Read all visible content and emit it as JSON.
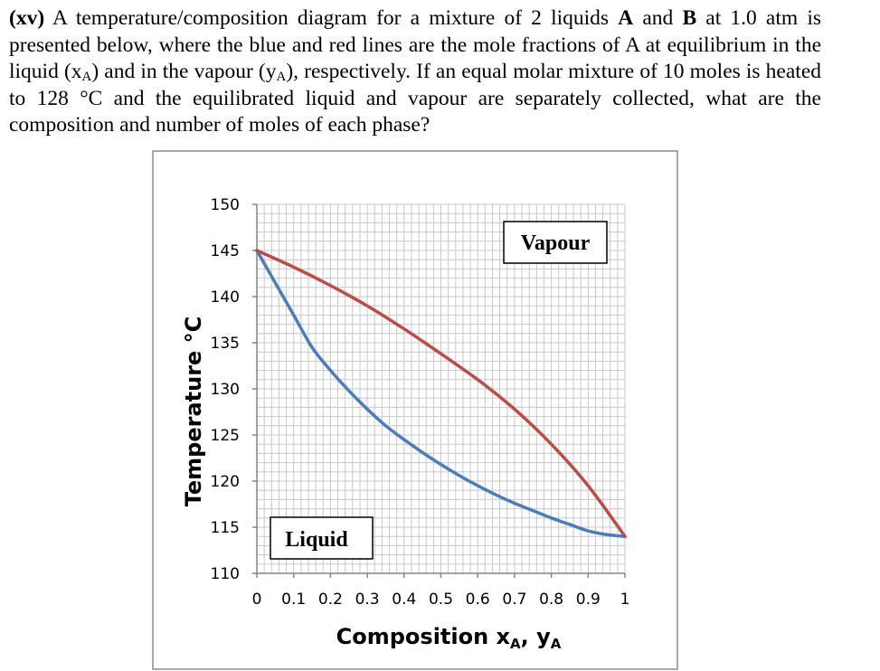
{
  "question": {
    "number": "(xv)",
    "t1": " A temperature/composition diagram for a mixture of 2 liquids ",
    "A": "A",
    "t2": " and ",
    "B": "B",
    "t3": " at 1.0 atm is presented below, where the blue and red lines are the mole fractions of A at equilibrium in the liquid (x",
    "sub1": "A",
    "t4": ") and in the vapour (y",
    "sub2": "A",
    "t5": "), respectively. If an equal molar mixture of 10 moles is heated to 128 °C and the equilibrated liquid and vapour are separately collected, what are the composition and number of moles of each phase?"
  },
  "chart_data": {
    "type": "line",
    "xlabel": "Composition x",
    "xlabel_sub": "A",
    "xlabel_mid": ", y",
    "xlabel_sub2": "A",
    "ylabel": "Temperature °C",
    "xlim": [
      0,
      1
    ],
    "ylim": [
      110,
      150
    ],
    "xticks": [
      "0",
      "0.1",
      "0.2",
      "0.3",
      "0.4",
      "0.5",
      "0.6",
      "0.7",
      "0.8",
      "0.9",
      "1"
    ],
    "yticks": [
      "150",
      "145",
      "140",
      "135",
      "130",
      "125",
      "120",
      "115",
      "110"
    ],
    "grid": true,
    "annotations": [
      "Vapour",
      "Liquid"
    ],
    "series": [
      {
        "color": "#4a7ebb",
        "points": [
          [
            0,
            145
          ],
          [
            0.05,
            141.5
          ],
          [
            0.1,
            138
          ],
          [
            0.15,
            134.5
          ],
          [
            0.2,
            132
          ],
          [
            0.25,
            129.8
          ],
          [
            0.3,
            127.8
          ],
          [
            0.35,
            126
          ],
          [
            0.4,
            124.5
          ],
          [
            0.45,
            123.1
          ],
          [
            0.5,
            121.8
          ],
          [
            0.55,
            120.6
          ],
          [
            0.6,
            119.5
          ],
          [
            0.65,
            118.5
          ],
          [
            0.7,
            117.6
          ],
          [
            0.75,
            116.8
          ],
          [
            0.8,
            116
          ],
          [
            0.85,
            115.3
          ],
          [
            0.9,
            114.6
          ],
          [
            0.95,
            114.2
          ],
          [
            1,
            114
          ]
        ]
      },
      {
        "color": "#be4b48",
        "points": [
          [
            0,
            145
          ],
          [
            0.1,
            143.2
          ],
          [
            0.2,
            141.2
          ],
          [
            0.3,
            139
          ],
          [
            0.4,
            136.5
          ],
          [
            0.5,
            133.8
          ],
          [
            0.6,
            131
          ],
          [
            0.7,
            127.8
          ],
          [
            0.8,
            124
          ],
          [
            0.9,
            119.5
          ],
          [
            1,
            114
          ]
        ]
      }
    ]
  }
}
